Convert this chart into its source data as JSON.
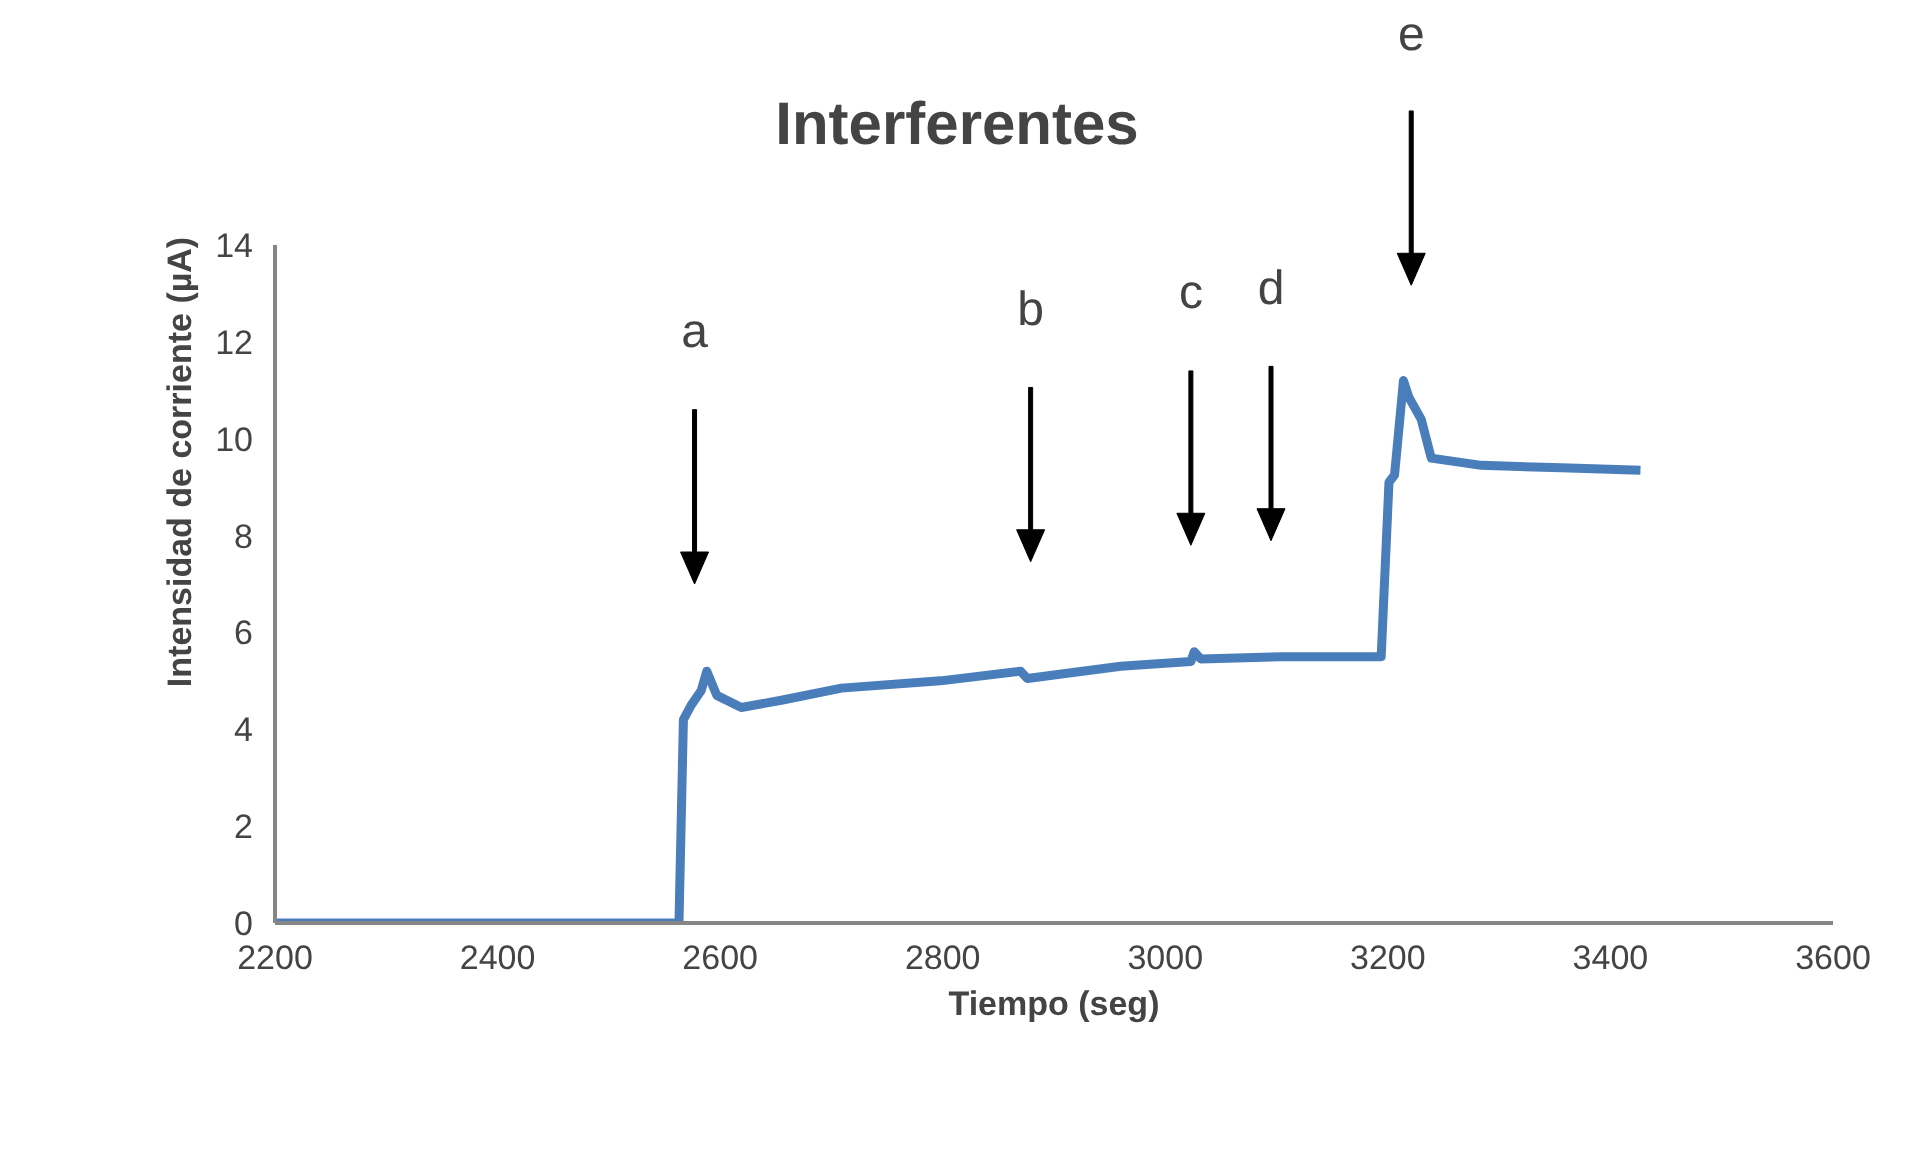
{
  "chart_data": {
    "type": "line",
    "title": "Interferentes",
    "xlabel": "Tiempo (seg)",
    "ylabel": "Intensidad de corriente (µA)",
    "x": [
      2200,
      2563,
      2567,
      2574,
      2583,
      2588,
      2597,
      2619,
      2655,
      2709,
      2798,
      2870,
      2876,
      2960,
      3023,
      3026,
      3032,
      3104,
      3190,
      3194,
      3201,
      3206,
      3214,
      3219,
      3230,
      3239,
      3284,
      3356,
      3427
    ],
    "series": [
      {
        "color": "#4a7ebb",
        "values": [
          0,
          0,
          4.2,
          4.5,
          4.8,
          5.2,
          4.7,
          4.45,
          4.6,
          4.85,
          5.0,
          5.2,
          5.05,
          5.3,
          5.4,
          5.6,
          5.45,
          5.5,
          5.5,
          5.5,
          9.1,
          9.25,
          11.2,
          10.85,
          10.4,
          9.6,
          9.45,
          9.4,
          9.35
        ]
      }
    ],
    "xlim": [
      2200,
      3600
    ],
    "xticks": [
      2200,
      2400,
      2600,
      2800,
      3000,
      3200,
      3400,
      3600
    ],
    "ylim": [
      0,
      14
    ],
    "yticks": [
      0,
      2,
      4,
      6,
      8,
      10,
      12,
      14
    ],
    "grid": false,
    "ref_lines": [
      {
        "axis": "x",
        "value": 2577,
        "label": "a"
      },
      {
        "axis": "x",
        "value": 2879,
        "label": "b"
      },
      {
        "axis": "x",
        "value": 3023,
        "label": "c"
      },
      {
        "axis": "x",
        "value": 3095,
        "label": "d"
      },
      {
        "axis": "x",
        "value": 3221,
        "label": "e"
      }
    ]
  }
}
